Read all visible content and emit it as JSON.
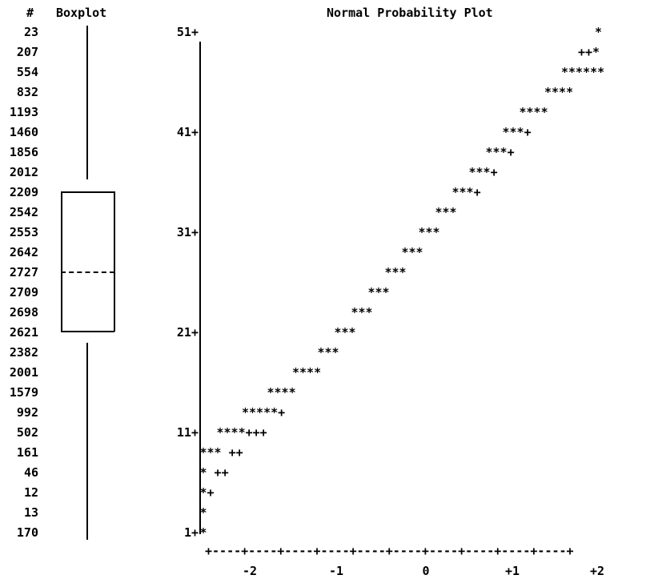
{
  "header": {
    "count_label": "#",
    "boxplot_title": "Boxplot",
    "plot_title": "Normal Probability Plot"
  },
  "counts": [
    "23",
    "207",
    "554",
    "832",
    "1193",
    "1460",
    "1856",
    "2012",
    "2209",
    "2542",
    "2553",
    "2642",
    "2727",
    "2709",
    "2698",
    "2621",
    "2382",
    "2001",
    "1579",
    "992",
    "502",
    "161",
    "46",
    "12",
    "13",
    "170"
  ],
  "chart_data": {
    "type": "scatter",
    "title": "Normal Probability Plot",
    "y_tick_labels": [
      "51+",
      "41+",
      "31+",
      "21+",
      "11+",
      "1+"
    ],
    "x_tick_labels": [
      "-2",
      "-1",
      "0",
      "+1",
      "+2"
    ],
    "x_axis_line": "+----+----+----+----+----+----+----+----+----+----+",
    "rows": [
      {
        "symbols": "*",
        "col": 66
      },
      {
        "symbols": "++*",
        "col": 64
      },
      {
        "symbols": "******",
        "col": 62
      },
      {
        "symbols": "****",
        "col": 60
      },
      {
        "symbols": "****",
        "col": 57
      },
      {
        "symbols": "***+",
        "col": 55
      },
      {
        "symbols": "***+",
        "col": 53
      },
      {
        "symbols": "***+",
        "col": 51
      },
      {
        "symbols": "***+",
        "col": 49
      },
      {
        "symbols": "***",
        "col": 47
      },
      {
        "symbols": "***",
        "col": 45
      },
      {
        "symbols": "***",
        "col": 43
      },
      {
        "symbols": "***",
        "col": 41
      },
      {
        "symbols": "***",
        "col": 39
      },
      {
        "symbols": "***",
        "col": 37
      },
      {
        "symbols": "***",
        "col": 35
      },
      {
        "symbols": "***",
        "col": 33
      },
      {
        "symbols": "****",
        "col": 30
      },
      {
        "symbols": "****",
        "col": 27
      },
      {
        "symbols": "*****+",
        "col": 24
      },
      {
        "symbols": "****+++",
        "col": 21
      },
      {
        "symbols": "*** ++",
        "col": 19
      },
      {
        "symbols": "* ++",
        "col": 19
      },
      {
        "symbols": "*+",
        "col": 19
      },
      {
        "symbols": "*",
        "col": 19
      },
      {
        "symbols": "*",
        "col": 19
      }
    ]
  }
}
